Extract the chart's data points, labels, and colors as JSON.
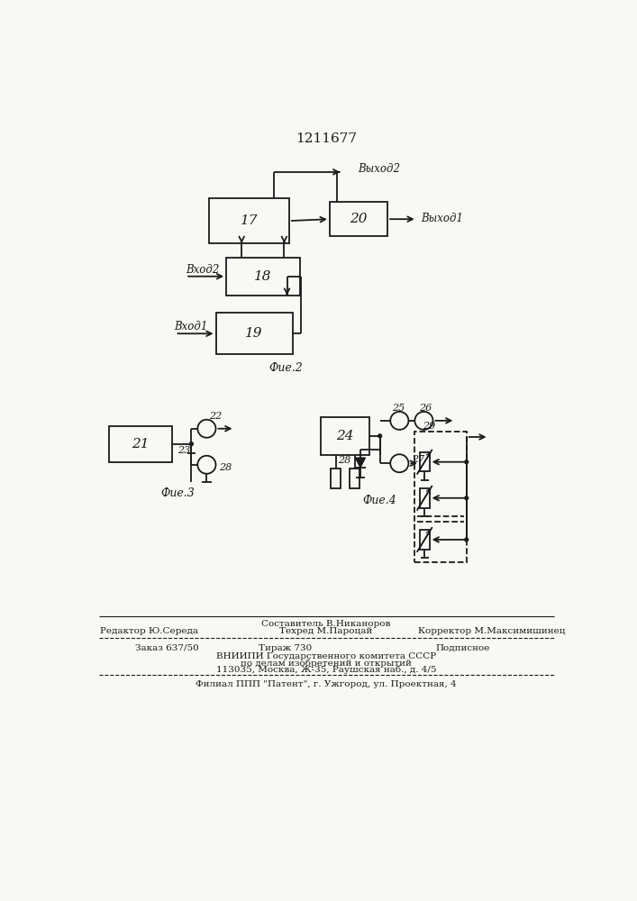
{
  "patent_number": "1211677",
  "fig2_label": "Фие.2",
  "fig3_label": "Фие.3",
  "fig4_label": "Фие.4",
  "bg_color": "#f8f8f5",
  "line_color": "#1a1a1a"
}
